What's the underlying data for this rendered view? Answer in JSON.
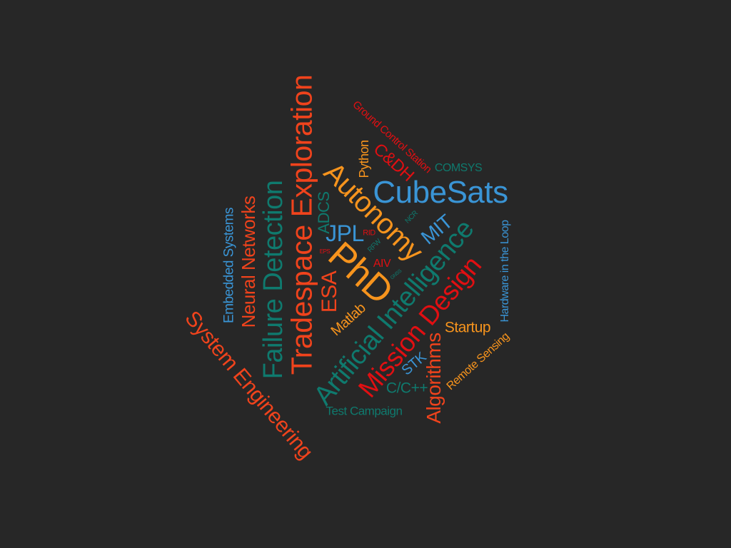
{
  "colors": {
    "background": "#272727",
    "orange": "#f7941d",
    "red": "#e10f12",
    "red_orange": "#f0431c",
    "teal": "#0f7a6e",
    "blue": "#3a95d6"
  },
  "words": {
    "tradespace_exploration": "Tradespace Exploration",
    "failure_detection": "Failure Detection",
    "artificial_intelligence": "Artificial Intelligence",
    "mission_design": "Mission Design",
    "system_engineering": "System Engineering",
    "phd": "PhD",
    "autonomy": "Autonomy",
    "cubesats": "CubeSats",
    "neural_networks": "Neural Networks",
    "embedded_systems": "Embedded Systems",
    "jpl": "JPL",
    "mit": "MIT",
    "esa": "ESA",
    "adcs": "ADCS",
    "algorithms": "Algorithms",
    "python": "Python",
    "cdh": "C&DH",
    "ground_control_station": "Ground Control Station",
    "comsys": "COMSYS",
    "hardware_in_the_loop": "Hardware in the Loop",
    "startup": "Startup",
    "remote_sensing": "Remote Sensing",
    "stk": "STK",
    "cpp": "C/C++",
    "test_campaign": "Test Campaign",
    "matlab": "Matlab",
    "aiv": "AIV",
    "rid": "RID",
    "ncr": "NCR",
    "rfw": "RFW",
    "eps": "EPS",
    "gnss": "GNSS"
  }
}
